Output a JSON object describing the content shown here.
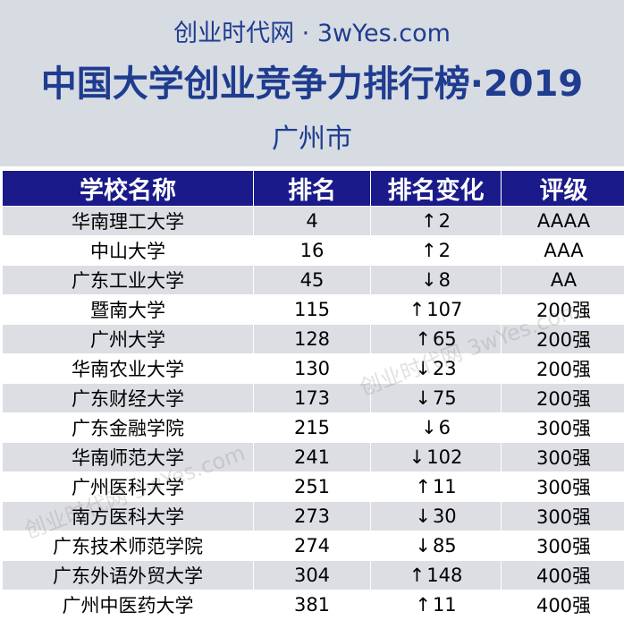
{
  "header": {
    "site": "创业时代网 · 3wYes.com",
    "title": "中国大学创业竞争力排行榜·2019",
    "city": "广州市"
  },
  "table": {
    "columns": [
      "学校名称",
      "排名",
      "排名变化",
      "评级"
    ],
    "rows": [
      {
        "name": "华南理工大学",
        "rank": "4",
        "dir": "↑",
        "change": "2",
        "grade": "AAAA"
      },
      {
        "name": "中山大学",
        "rank": "16",
        "dir": "↑",
        "change": "2",
        "grade": "AAA"
      },
      {
        "name": "广东工业大学",
        "rank": "45",
        "dir": "↓",
        "change": "8",
        "grade": "AA"
      },
      {
        "name": "暨南大学",
        "rank": "115",
        "dir": "↑",
        "change": "107",
        "grade": "200强"
      },
      {
        "name": "广州大学",
        "rank": "128",
        "dir": "↑",
        "change": "65",
        "grade": "200强"
      },
      {
        "name": "华南农业大学",
        "rank": "130",
        "dir": "↓",
        "change": "23",
        "grade": "200强"
      },
      {
        "name": "广东财经大学",
        "rank": "173",
        "dir": "↓",
        "change": "75",
        "grade": "200强"
      },
      {
        "name": "广东金融学院",
        "rank": "215",
        "dir": "↓",
        "change": "6",
        "grade": "300强"
      },
      {
        "name": "华南师范大学",
        "rank": "241",
        "dir": "↓",
        "change": "102",
        "grade": "300强"
      },
      {
        "name": "广州医科大学",
        "rank": "251",
        "dir": "↑",
        "change": "11",
        "grade": "300强"
      },
      {
        "name": "南方医科大学",
        "rank": "273",
        "dir": "↓",
        "change": "30",
        "grade": "300强"
      },
      {
        "name": "广东技术师范学院",
        "rank": "274",
        "dir": "↓",
        "change": "85",
        "grade": "300强"
      },
      {
        "name": "广东外语外贸大学",
        "rank": "304",
        "dir": "↑",
        "change": "148",
        "grade": "400强"
      },
      {
        "name": "广州中医药大学",
        "rank": "381",
        "dir": "↑",
        "change": "11",
        "grade": "400强"
      }
    ]
  },
  "watermark": "创业时代网 3wYes.com",
  "colors": {
    "header_bg": "#d7dce3",
    "title_text": "#1f3c8f",
    "table_header_bg": "#1a1a8a",
    "row_alt_bg": "#dcdee3"
  }
}
